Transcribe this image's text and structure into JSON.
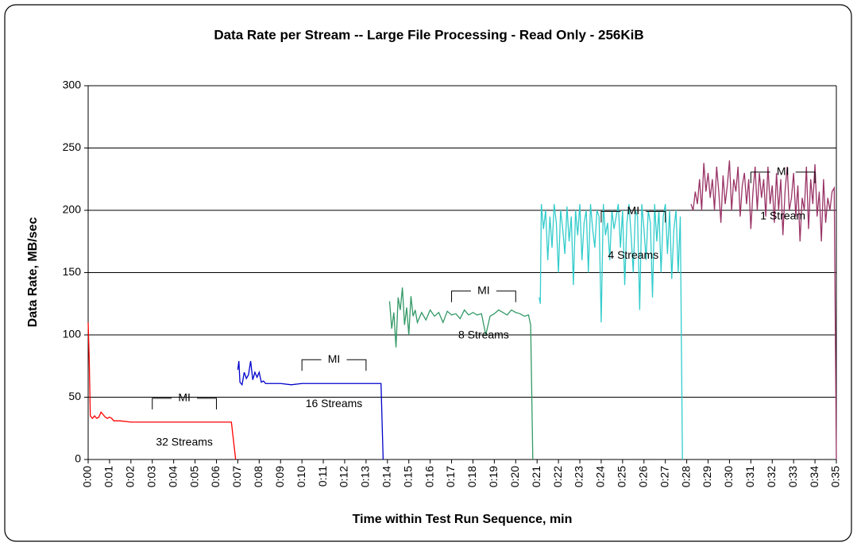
{
  "chart_data": {
    "type": "line",
    "title": "Data Rate per Stream -- Large File Processing - Read Only - 256KiB",
    "x_label": "Time within Test Run Sequence, min",
    "y_label": "Data Rate, MB/sec",
    "xlim": [
      0,
      35
    ],
    "xticks": [
      {
        "value": 0,
        "label": "0:00"
      },
      {
        "value": 1,
        "label": "0:01"
      },
      {
        "value": 2,
        "label": "0:02"
      },
      {
        "value": 3,
        "label": "0:03"
      },
      {
        "value": 4,
        "label": "0:04"
      },
      {
        "value": 5,
        "label": "0:05"
      },
      {
        "value": 6,
        "label": "0:06"
      },
      {
        "value": 7,
        "label": "0:07"
      },
      {
        "value": 8,
        "label": "0:08"
      },
      {
        "value": 9,
        "label": "0:09"
      },
      {
        "value": 10,
        "label": "0:10"
      },
      {
        "value": 11,
        "label": "0:11"
      },
      {
        "value": 12,
        "label": "0:12"
      },
      {
        "value": 13,
        "label": "0:13"
      },
      {
        "value": 14,
        "label": "0:14"
      },
      {
        "value": 15,
        "label": "0:15"
      },
      {
        "value": 16,
        "label": "0:16"
      },
      {
        "value": 17,
        "label": "0:17"
      },
      {
        "value": 18,
        "label": "0:18"
      },
      {
        "value": 19,
        "label": "0:19"
      },
      {
        "value": 20,
        "label": "0:20"
      },
      {
        "value": 21,
        "label": "0:21"
      },
      {
        "value": 22,
        "label": "0:22"
      },
      {
        "value": 23,
        "label": "0:23"
      },
      {
        "value": 24,
        "label": "0:24"
      },
      {
        "value": 25,
        "label": "0:25"
      },
      {
        "value": 26,
        "label": "0:26"
      },
      {
        "value": 27,
        "label": "0:27"
      },
      {
        "value": 28,
        "label": "0:28"
      },
      {
        "value": 29,
        "label": "0:29"
      },
      {
        "value": 30,
        "label": "0:30"
      },
      {
        "value": 31,
        "label": "0:31"
      },
      {
        "value": 32,
        "label": "0:32"
      },
      {
        "value": 33,
        "label": "0:33"
      },
      {
        "value": 34,
        "label": "0:34"
      },
      {
        "value": 35,
        "label": "0:35"
      }
    ],
    "ylim": [
      0,
      300
    ],
    "yticks": [
      0,
      50,
      100,
      150,
      200,
      250,
      300
    ],
    "grid": true,
    "series": [
      {
        "name": "32 Streams",
        "color": "#ff0000",
        "x": [
          0,
          0.05,
          0.1,
          0.2,
          0.3,
          0.4,
          0.5,
          0.6,
          0.7,
          0.8,
          0.9,
          1.0,
          1.1,
          1.2,
          1.5,
          2,
          3,
          4,
          5,
          6,
          6.7,
          6.8,
          6.9
        ],
        "values": [
          110,
          80,
          35,
          33,
          35,
          33,
          34,
          38,
          36,
          34,
          33,
          34,
          33,
          31,
          31,
          30,
          30,
          30,
          30,
          30,
          30,
          15,
          0
        ]
      },
      {
        "name": "16 Streams",
        "color": "#0000cc",
        "x": [
          7.0,
          7.05,
          7.1,
          7.2,
          7.3,
          7.4,
          7.5,
          7.6,
          7.7,
          7.8,
          7.9,
          8.0,
          8.1,
          8.2,
          8.3,
          8.5,
          9,
          9.5,
          10,
          11,
          12,
          13,
          13.5,
          13.7,
          13.75,
          13.8
        ],
        "values": [
          72,
          79,
          62,
          60,
          70,
          65,
          68,
          79,
          64,
          70,
          66,
          70,
          62,
          63,
          61,
          61,
          61,
          60,
          61,
          61,
          61,
          61,
          61,
          61,
          30,
          0
        ]
      },
      {
        "name": "8 Streams",
        "color": "#339966",
        "x": [
          14.1,
          14.2,
          14.3,
          14.4,
          14.5,
          14.6,
          14.7,
          14.8,
          14.9,
          15.0,
          15.1,
          15.2,
          15.3,
          15.4,
          15.6,
          15.8,
          16.0,
          16.2,
          16.4,
          16.6,
          16.8,
          17.0,
          17.2,
          17.4,
          17.6,
          17.8,
          18.0,
          18.2,
          18.4,
          18.6,
          18.8,
          19.0,
          19.2,
          19.4,
          19.6,
          19.8,
          20.0,
          20.2,
          20.4,
          20.6,
          20.7,
          20.8
        ],
        "values": [
          127,
          105,
          118,
          90,
          130,
          120,
          138,
          108,
          122,
          100,
          131,
          115,
          120,
          110,
          118,
          112,
          120,
          115,
          118,
          110,
          119,
          116,
          117,
          113,
          120,
          116,
          118,
          116,
          117,
          100,
          115,
          117,
          120,
          118,
          116,
          120,
          118,
          117,
          115,
          116,
          108,
          0
        ]
      },
      {
        "name": "4 Streams",
        "color": "#33cccc",
        "x": [
          21.1,
          21.15,
          21.2,
          21.3,
          21.4,
          21.5,
          21.6,
          21.7,
          21.8,
          21.9,
          22.0,
          22.1,
          22.2,
          22.3,
          22.4,
          22.5,
          22.6,
          22.7,
          22.8,
          22.9,
          23.0,
          23.1,
          23.2,
          23.3,
          23.4,
          23.5,
          23.6,
          23.7,
          23.8,
          23.9,
          24.0,
          24.1,
          24.2,
          24.3,
          24.4,
          24.5,
          24.6,
          24.7,
          24.8,
          24.9,
          25.0,
          25.1,
          25.2,
          25.3,
          25.4,
          25.5,
          25.6,
          25.7,
          25.8,
          25.9,
          26.0,
          26.1,
          26.2,
          26.3,
          26.4,
          26.5,
          26.6,
          26.7,
          26.8,
          26.9,
          27.0,
          27.1,
          27.2,
          27.3,
          27.4,
          27.5,
          27.6,
          27.7,
          27.8
        ],
        "values": [
          130,
          125,
          205,
          185,
          200,
          160,
          195,
          170,
          205,
          190,
          150,
          200,
          185,
          165,
          203,
          175,
          195,
          140,
          200,
          180,
          205,
          160,
          190,
          200,
          150,
          205,
          185,
          170,
          200,
          195,
          110,
          205,
          180,
          190,
          160,
          200,
          185,
          195,
          205,
          170,
          200,
          140,
          190,
          205,
          180,
          150,
          200,
          195,
          120,
          205,
          185,
          160,
          200,
          190,
          130,
          205,
          175,
          200,
          150,
          195,
          205,
          165,
          200,
          145,
          185,
          200,
          150,
          195,
          0
        ]
      },
      {
        "name": "1 Stream",
        "color": "#993366",
        "x": [
          28.2,
          28.3,
          28.4,
          28.5,
          28.6,
          28.7,
          28.8,
          28.9,
          29.0,
          29.1,
          29.2,
          29.3,
          29.4,
          29.5,
          29.6,
          29.7,
          29.8,
          29.9,
          30.0,
          30.1,
          30.2,
          30.3,
          30.4,
          30.5,
          30.6,
          30.7,
          30.8,
          30.9,
          31.0,
          31.1,
          31.2,
          31.3,
          31.4,
          31.5,
          31.6,
          31.7,
          31.8,
          31.9,
          32.0,
          32.1,
          32.2,
          32.3,
          32.4,
          32.5,
          32.6,
          32.7,
          32.8,
          32.9,
          33.0,
          33.1,
          33.2,
          33.3,
          33.4,
          33.5,
          33.6,
          33.7,
          33.8,
          33.9,
          34.0,
          34.1,
          34.2,
          34.3,
          34.4,
          34.5,
          34.6,
          34.7,
          34.8,
          34.9,
          35.0
        ],
        "values": [
          205,
          200,
          215,
          205,
          225,
          200,
          238,
          215,
          230,
          210,
          225,
          200,
          235,
          215,
          190,
          228,
          205,
          220,
          240,
          200,
          225,
          215,
          235,
          195,
          220,
          230,
          205,
          225,
          185,
          215,
          235,
          200,
          230,
          210,
          225,
          195,
          235,
          205,
          220,
          190,
          230,
          200,
          225,
          180,
          215,
          235,
          200,
          210,
          230,
          195,
          220,
          175,
          210,
          200,
          235,
          185,
          225,
          205,
          237,
          195,
          215,
          175,
          225,
          190,
          210,
          200,
          215,
          218,
          0
        ]
      }
    ],
    "annotations": [
      {
        "text": "MI",
        "x_start": 3,
        "x_end": 6
      },
      {
        "text": "MI",
        "x_start": 10,
        "x_end": 13
      },
      {
        "text": "MI",
        "x_start": 17,
        "x_end": 20
      },
      {
        "text": "MI",
        "x_start": 24,
        "x_end": 27
      },
      {
        "text": "MI",
        "x_start": 31,
        "x_end": 34
      }
    ]
  }
}
